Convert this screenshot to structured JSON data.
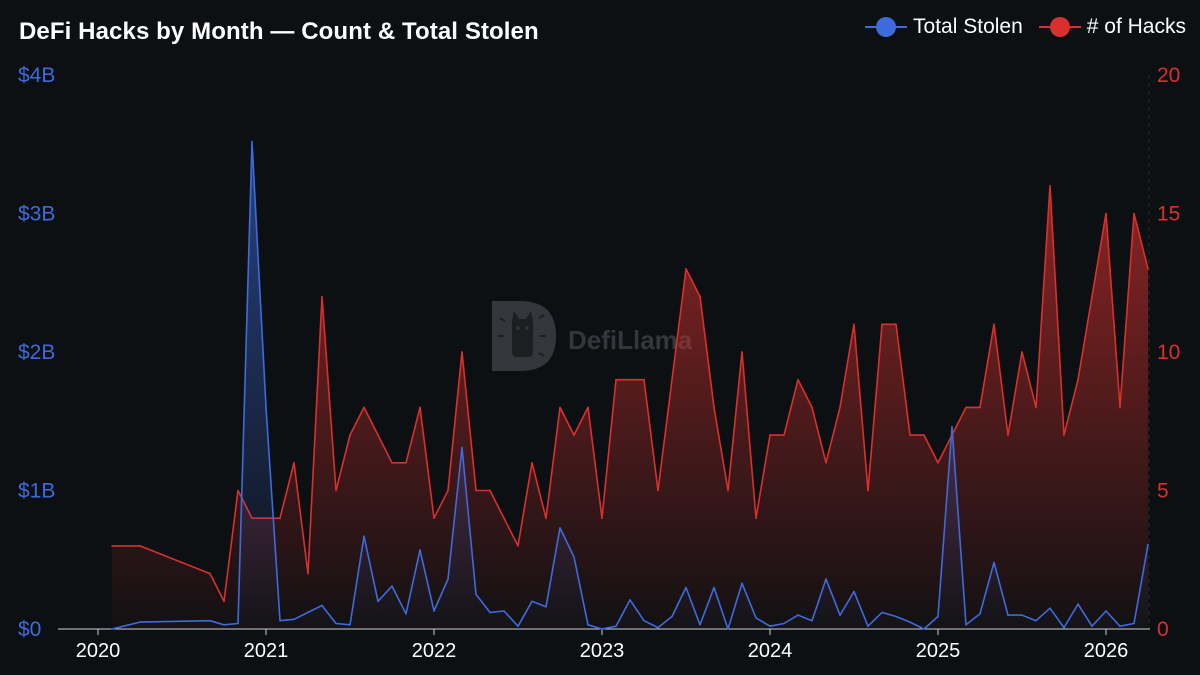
{
  "chart_data": {
    "type": "line",
    "title": "DeFi Hacks by Month — Count & Total Stolen",
    "legend": "top-right",
    "grid": false,
    "x_ticks": [
      "2020",
      "2021",
      "2022",
      "2023",
      "2024",
      "2025",
      "2026"
    ],
    "y_left": {
      "ticks": [
        "$0",
        "$1B",
        "$2B",
        "$3B",
        "$4B"
      ],
      "range": [
        0,
        4
      ]
    },
    "y_right": {
      "ticks": [
        "0",
        "5",
        "10",
        "15",
        "20"
      ],
      "range": [
        0,
        20
      ]
    },
    "series": [
      {
        "name": "Total Stolen",
        "axis": "left",
        "unit": "billion USD",
        "color": "#3e6bdc",
        "points": [
          [
            "2020-02-01",
            0.0
          ],
          [
            "2020-04-01",
            0.05
          ],
          [
            "2020-09-01",
            0.06
          ],
          [
            "2020-10-01",
            0.03
          ],
          [
            "2020-11-01",
            0.04
          ],
          [
            "2020-12-01",
            3.52
          ],
          [
            "2021-01-01",
            1.6
          ],
          [
            "2021-02-01",
            0.06
          ],
          [
            "2021-03-01",
            0.07
          ],
          [
            "2021-04-01",
            0.12
          ],
          [
            "2021-05-01",
            0.17
          ],
          [
            "2021-06-01",
            0.04
          ],
          [
            "2021-07-01",
            0.03
          ],
          [
            "2021-08-01",
            0.67
          ],
          [
            "2021-09-01",
            0.2
          ],
          [
            "2021-10-01",
            0.31
          ],
          [
            "2021-11-01",
            0.11
          ],
          [
            "2021-12-01",
            0.57
          ],
          [
            "2022-01-01",
            0.13
          ],
          [
            "2022-02-01",
            0.36
          ],
          [
            "2022-03-01",
            1.31
          ],
          [
            "2022-04-01",
            0.25
          ],
          [
            "2022-05-01",
            0.12
          ],
          [
            "2022-06-01",
            0.13
          ],
          [
            "2022-07-01",
            0.02
          ],
          [
            "2022-08-01",
            0.2
          ],
          [
            "2022-09-01",
            0.16
          ],
          [
            "2022-10-01",
            0.73
          ],
          [
            "2022-11-01",
            0.52
          ],
          [
            "2022-12-01",
            0.03
          ],
          [
            "2023-01-01",
            0.0
          ],
          [
            "2023-02-01",
            0.02
          ],
          [
            "2023-03-01",
            0.21
          ],
          [
            "2023-04-01",
            0.06
          ],
          [
            "2023-05-01",
            0.01
          ],
          [
            "2023-06-01",
            0.09
          ],
          [
            "2023-07-01",
            0.3
          ],
          [
            "2023-08-01",
            0.03
          ],
          [
            "2023-09-01",
            0.3
          ],
          [
            "2023-10-01",
            0.0
          ],
          [
            "2023-11-01",
            0.33
          ],
          [
            "2023-12-01",
            0.08
          ],
          [
            "2024-01-01",
            0.02
          ],
          [
            "2024-02-01",
            0.04
          ],
          [
            "2024-03-01",
            0.1
          ],
          [
            "2024-04-01",
            0.06
          ],
          [
            "2024-05-01",
            0.36
          ],
          [
            "2024-06-01",
            0.1
          ],
          [
            "2024-07-01",
            0.27
          ],
          [
            "2024-08-01",
            0.02
          ],
          [
            "2024-09-01",
            0.12
          ],
          [
            "2024-10-01",
            0.09
          ],
          [
            "2024-11-01",
            0.05
          ],
          [
            "2024-12-01",
            0.0
          ],
          [
            "2025-01-01",
            0.09
          ],
          [
            "2025-02-01",
            1.46
          ],
          [
            "2025-03-01",
            0.03
          ],
          [
            "2025-04-01",
            0.11
          ],
          [
            "2025-05-01",
            0.48
          ],
          [
            "2025-06-01",
            0.1
          ],
          [
            "2025-07-01",
            0.1
          ],
          [
            "2025-08-01",
            0.06
          ],
          [
            "2025-09-01",
            0.15
          ],
          [
            "2025-10-01",
            0.01
          ],
          [
            "2025-11-01",
            0.18
          ],
          [
            "2025-12-01",
            0.02
          ],
          [
            "2026-01-01",
            0.13
          ],
          [
            "2026-02-01",
            0.02
          ],
          [
            "2026-03-01",
            0.04
          ],
          [
            "2026-04-01",
            0.61
          ]
        ]
      },
      {
        "name": "# of Hacks",
        "axis": "right",
        "unit": "count",
        "color": "#d9302f",
        "points": [
          [
            "2020-02-01",
            3
          ],
          [
            "2020-04-01",
            3
          ],
          [
            "2020-09-01",
            2
          ],
          [
            "2020-10-01",
            1
          ],
          [
            "2020-11-01",
            5
          ],
          [
            "2020-12-01",
            4
          ],
          [
            "2021-01-01",
            4
          ],
          [
            "2021-02-01",
            4
          ],
          [
            "2021-03-01",
            6
          ],
          [
            "2021-04-01",
            2
          ],
          [
            "2021-05-01",
            12
          ],
          [
            "2021-06-01",
            5
          ],
          [
            "2021-07-01",
            7
          ],
          [
            "2021-08-01",
            8
          ],
          [
            "2021-09-01",
            7
          ],
          [
            "2021-10-01",
            6
          ],
          [
            "2021-11-01",
            6
          ],
          [
            "2021-12-01",
            8
          ],
          [
            "2022-01-01",
            4
          ],
          [
            "2022-02-01",
            5
          ],
          [
            "2022-03-01",
            10
          ],
          [
            "2022-04-01",
            5
          ],
          [
            "2022-05-01",
            5
          ],
          [
            "2022-06-01",
            4
          ],
          [
            "2022-07-01",
            3
          ],
          [
            "2022-08-01",
            6
          ],
          [
            "2022-09-01",
            4
          ],
          [
            "2022-10-01",
            8
          ],
          [
            "2022-11-01",
            7
          ],
          [
            "2022-12-01",
            8
          ],
          [
            "2023-01-01",
            4
          ],
          [
            "2023-02-01",
            9
          ],
          [
            "2023-03-01",
            9
          ],
          [
            "2023-04-01",
            9
          ],
          [
            "2023-05-01",
            5
          ],
          [
            "2023-06-01",
            9
          ],
          [
            "2023-07-01",
            13
          ],
          [
            "2023-08-01",
            12
          ],
          [
            "2023-09-01",
            8
          ],
          [
            "2023-10-01",
            5
          ],
          [
            "2023-11-01",
            10
          ],
          [
            "2023-12-01",
            4
          ],
          [
            "2024-01-01",
            7
          ],
          [
            "2024-02-01",
            7
          ],
          [
            "2024-03-01",
            9
          ],
          [
            "2024-04-01",
            8
          ],
          [
            "2024-05-01",
            6
          ],
          [
            "2024-06-01",
            8
          ],
          [
            "2024-07-01",
            11
          ],
          [
            "2024-08-01",
            5
          ],
          [
            "2024-09-01",
            11
          ],
          [
            "2024-10-01",
            11
          ],
          [
            "2024-11-01",
            7
          ],
          [
            "2024-12-01",
            7
          ],
          [
            "2025-01-01",
            6
          ],
          [
            "2025-02-01",
            7
          ],
          [
            "2025-03-01",
            8
          ],
          [
            "2025-04-01",
            8
          ],
          [
            "2025-05-01",
            11
          ],
          [
            "2025-06-01",
            7
          ],
          [
            "2025-07-01",
            10
          ],
          [
            "2025-08-01",
            8
          ],
          [
            "2025-09-01",
            16
          ],
          [
            "2025-10-01",
            7
          ],
          [
            "2025-11-01",
            9
          ],
          [
            "2025-12-01",
            12
          ],
          [
            "2026-01-01",
            15
          ],
          [
            "2026-02-01",
            8
          ],
          [
            "2026-03-01",
            15
          ],
          [
            "2026-04-01",
            13
          ]
        ]
      }
    ]
  },
  "watermark": {
    "text": "DefiLlama",
    "icon": "llama-logo-icon"
  },
  "colors": {
    "background": "#0c1012",
    "stolen": "#3e6bdc",
    "hacks": "#d9302f"
  }
}
